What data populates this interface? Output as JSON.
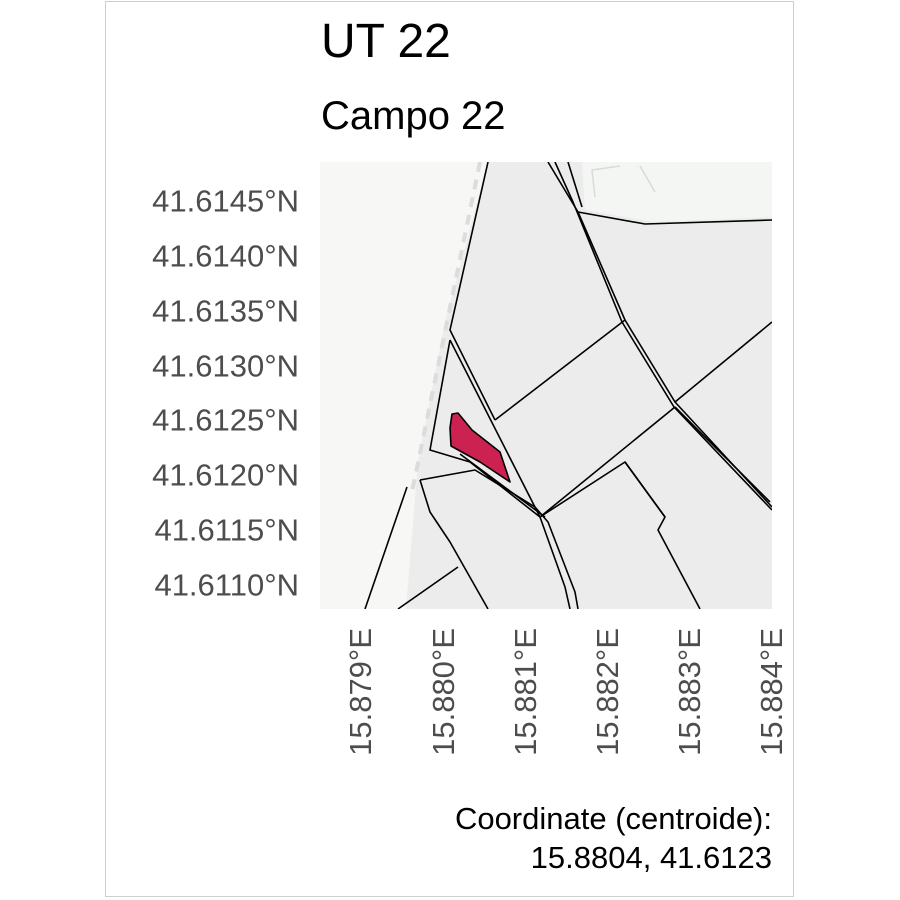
{
  "title": "UT 22",
  "subtitle": "Campo 22",
  "highlight_color": "#cc2251",
  "parcel_fill": "#ececec",
  "parcel_stroke": "#000000",
  "road_color": "#f7f7f5",
  "axes": {
    "y_ticks": [
      "41.6145°N",
      "41.6140°N",
      "41.6135°N",
      "41.6130°N",
      "41.6125°N",
      "41.6120°N",
      "41.6115°N",
      "41.6110°N"
    ],
    "x_ticks": [
      "15.879°E",
      "15.880°E",
      "15.881°E",
      "15.882°E",
      "15.883°E",
      "15.884°E"
    ]
  },
  "caption": {
    "line1": "Coordinate (centroide):",
    "line2": "15.8804, 41.6123"
  }
}
